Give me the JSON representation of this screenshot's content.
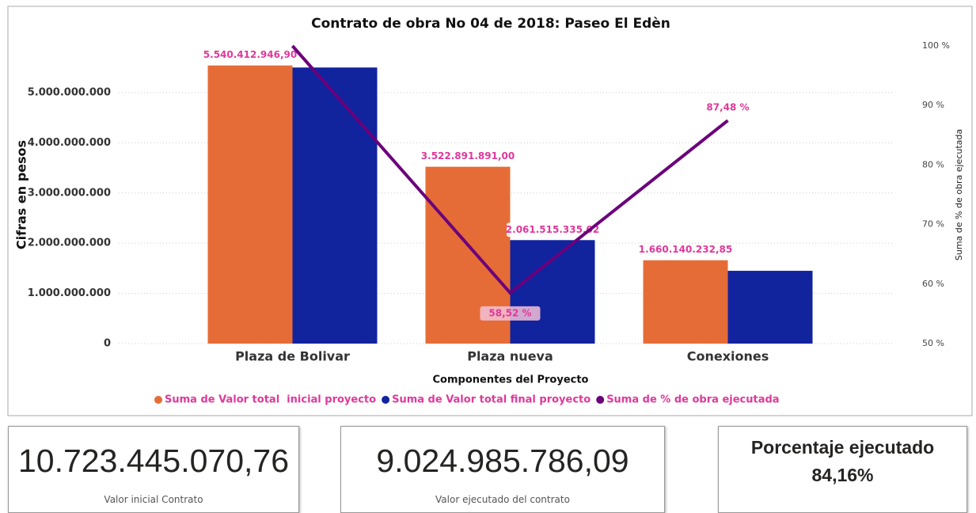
{
  "chart_data": {
    "type": "bar",
    "title": "Contrato de obra No 04 de 2018: Paseo El Edèn",
    "x_label": "Componentes del Proyecto",
    "y_label": "Cifras en pesos",
    "y2_label": "Suma de % de obra ejecutada",
    "categories": [
      "Plaza de Bolivar",
      "Plaza nueva",
      "Conexiones"
    ],
    "series": [
      {
        "name": "Suma de Valor total  inicial proyecto",
        "color": "#e66c37",
        "values": [
          5540412946.9,
          3522891891.0,
          1660140232.85
        ],
        "value_labels": [
          "5.540.412.946,90",
          "3.522.891.891,00",
          "1.660.140.232,85"
        ]
      },
      {
        "name": "Suma de Valor total final proyecto",
        "color": "#12239e",
        "values": [
          5500000000,
          2061515335.02,
          1450000000
        ],
        "value_labels": [
          null,
          "2.061.515.335,02",
          null
        ]
      },
      {
        "name": "Suma de % de obra ejecutada",
        "color": "#6b007b",
        "type": "line",
        "axis": "y2",
        "values": [
          100,
          58.52,
          87.48
        ],
        "value_labels": [
          null,
          "58,52 %",
          "87,48 %"
        ]
      }
    ],
    "ylim": [
      0,
      5930000000
    ],
    "yticks": [
      0,
      {
        "value": 1000000000,
        "label": "1.000.000.000"
      },
      {
        "value": 2000000000,
        "label": "2.000.000.000"
      },
      {
        "value": 3000000000,
        "label": "3.000.000.000"
      },
      {
        "value": 4000000000,
        "label": "4.000.000.000"
      },
      {
        "value": 5000000000,
        "label": "5.000.000.000"
      }
    ],
    "y2lim": [
      50,
      100
    ],
    "y2ticks": [
      {
        "value": 50,
        "label": "50 %"
      },
      {
        "value": 60,
        "label": "60 %"
      },
      {
        "value": 70,
        "label": "70 %"
      },
      {
        "value": 80,
        "label": "80 %"
      },
      {
        "value": 90,
        "label": "90 %"
      },
      {
        "value": 100,
        "label": "100 %"
      }
    ],
    "grid": true,
    "legend": "bottom"
  },
  "cards": [
    {
      "value": "10.723.445.070,76",
      "label": "Valor inicial Contrato"
    },
    {
      "value": "9.024.985.786,09",
      "label": "Valor ejecutado del contrato"
    },
    {
      "title": "Porcentaje ejecutado",
      "value": "84,16%"
    }
  ]
}
